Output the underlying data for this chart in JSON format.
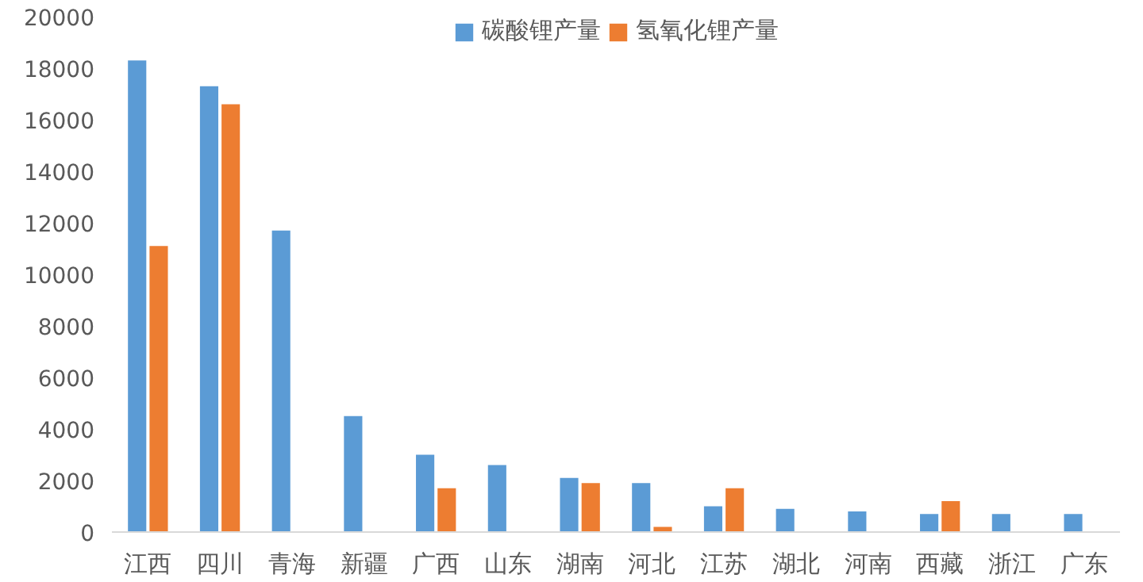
{
  "chart_data": {
    "type": "bar",
    "categories": [
      "江西",
      "四川",
      "青海",
      "新疆",
      "广西",
      "山东",
      "湖南",
      "河北",
      "江苏",
      "湖北",
      "河南",
      "西藏",
      "浙江",
      "广东"
    ],
    "series": [
      {
        "name": "碳酸锂产量",
        "color": "#5b9bd5",
        "values": [
          18300,
          17300,
          11700,
          4500,
          3000,
          2600,
          2100,
          1900,
          1000,
          900,
          800,
          700,
          700,
          700
        ]
      },
      {
        "name": "氢氧化锂产量",
        "color": "#ed7d31",
        "values": [
          11100,
          16600,
          null,
          null,
          1700,
          null,
          1900,
          200,
          1700,
          null,
          null,
          1200,
          null,
          null
        ]
      }
    ],
    "ylim": [
      0,
      20000
    ],
    "yticks": [
      0,
      2000,
      4000,
      6000,
      8000,
      10000,
      12000,
      14000,
      16000,
      18000,
      20000
    ],
    "grid": false,
    "legend": "top"
  }
}
